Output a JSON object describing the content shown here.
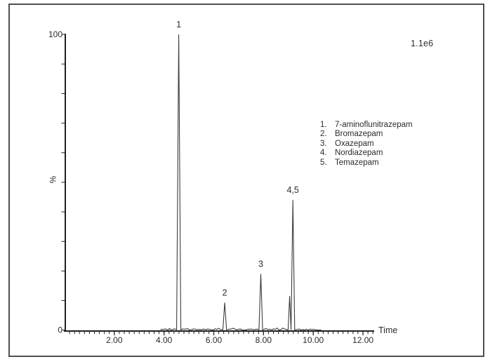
{
  "window": {
    "background": "#ffffff",
    "border_color": "#4f4f4f"
  },
  "chart_data": {
    "type": "line",
    "subtype": "chromatogram",
    "title": "",
    "xlabel": "Time",
    "ylabel": "%",
    "x_range": [
      0,
      12.45
    ],
    "y_range": [
      0,
      100
    ],
    "x_major_ticks": [
      {
        "label": "2.00",
        "value": 2
      },
      {
        "label": "4.00",
        "value": 4
      },
      {
        "label": "6.00",
        "value": 6
      },
      {
        "label": "8.00",
        "value": 8
      },
      {
        "label": "10.00",
        "value": 10
      },
      {
        "label": "12.00",
        "value": 12
      }
    ],
    "x_minor_tick_step": 0.2,
    "y_ticks": [
      {
        "label": "100",
        "value": 100
      },
      {
        "label": "0",
        "value": 0
      }
    ],
    "y_minor_tick_step": 10,
    "intensity_scale_annotation": "1.1e6",
    "axis_color": "#1f1f1f",
    "trace_color": "#3d3d3d",
    "grid": false,
    "baseline_noise": {
      "from_time": 3.85,
      "to_time": 10.3,
      "amplitude_pct": 0.8
    },
    "peaks": [
      {
        "id": "1",
        "time": 4.59,
        "height_pct": 100.0,
        "compound": "7-aminoflunitrazepam"
      },
      {
        "id": "2",
        "time": 6.44,
        "height_pct": 9.3,
        "compound": "Bromazepam"
      },
      {
        "id": "3",
        "time": 7.89,
        "height_pct": 19.0,
        "compound": "Oxazepam"
      },
      {
        "id": "4",
        "time": 9.05,
        "height_pct": 11.5,
        "compound": "Nordiazepam"
      },
      {
        "id": "5",
        "time": 9.18,
        "height_pct": 44.0,
        "compound": "Temazepam"
      }
    ],
    "peak_labels": [
      {
        "text": "1",
        "time": 4.59,
        "height_pct": 100.0
      },
      {
        "text": "2",
        "time": 6.44,
        "height_pct": 9.3
      },
      {
        "text": "3",
        "time": 7.89,
        "height_pct": 19.0
      },
      {
        "text": "4,5",
        "time": 9.18,
        "height_pct": 44.0
      }
    ]
  },
  "legend": {
    "items": [
      {
        "number": "1.",
        "name": "7-aminoflunitrazepam"
      },
      {
        "number": "2.",
        "name": "Bromazepam"
      },
      {
        "number": "3.",
        "name": "Oxazepam"
      },
      {
        "number": "4.",
        "name": "Nordiazepam"
      },
      {
        "number": "5.",
        "name": "Temazepam"
      }
    ]
  }
}
